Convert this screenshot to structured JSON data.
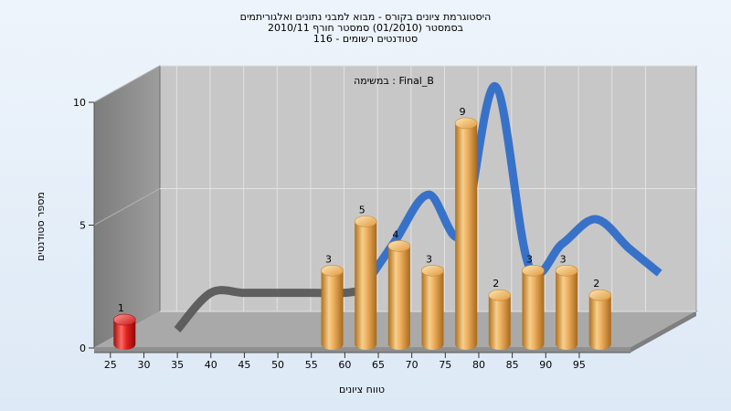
{
  "chart_data": {
    "type": "bar",
    "title_lines": [
      "היסטוגרמת ציונים בקורס - מבוא למבני נתונים ואלגוריתמים",
      "בסמסטר  (01/2010)  סמסטר חורף 2010/11",
      "סטודנטים רשומים - 116"
    ],
    "subtitle": "במשימה : Final_B",
    "xlabel": "טווח ציונים",
    "ylabel": "מספר סטודנטים",
    "ylim": [
      0,
      10
    ],
    "y_ticks": [
      0,
      5,
      10
    ],
    "x_tick_labels": [
      "25",
      "30",
      "35",
      "40",
      "45",
      "50",
      "55",
      "60",
      "65",
      "70",
      "75",
      "80",
      "85",
      "90",
      "95"
    ],
    "bars": [
      {
        "bin": "25",
        "value": 1,
        "highlight": true
      },
      {
        "bin": "55-60",
        "value": 3,
        "highlight": false
      },
      {
        "bin": "60-65",
        "value": 5,
        "highlight": false
      },
      {
        "bin": "65-70",
        "value": 4,
        "highlight": false
      },
      {
        "bin": "70-75",
        "value": 3,
        "highlight": false
      },
      {
        "bin": "75-80",
        "value": 9,
        "highlight": false
      },
      {
        "bin": "80-85",
        "value": 2,
        "highlight": false
      },
      {
        "bin": "85-90",
        "value": 3,
        "highlight": false
      },
      {
        "bin": "90-95",
        "value": 3,
        "highlight": false
      },
      {
        "bin": "95-100",
        "value": 2,
        "highlight": false
      }
    ],
    "curve": {
      "x": [
        30,
        35,
        40,
        45,
        50,
        55,
        57.5,
        62.5,
        67.5,
        72.5,
        77.5,
        82.5,
        87.5,
        92.5,
        97.5,
        102
      ],
      "y": [
        0,
        1.5,
        1.5,
        1.5,
        1.5,
        1.5,
        1.6,
        3.6,
        5.5,
        3.9,
        9.9,
        2.6,
        3.5,
        4.5,
        3.3,
        2.3
      ]
    },
    "colors": {
      "bar": "#e8a64e",
      "bar_highlight": "#e0201d",
      "curve_gray": "#5a5a5a",
      "curve_blue": "#2f6ec8",
      "back_wall": "#c7c7c7",
      "side_wall": "#8a8a8a",
      "floor": "#a9a9a9"
    },
    "grid": true
  }
}
